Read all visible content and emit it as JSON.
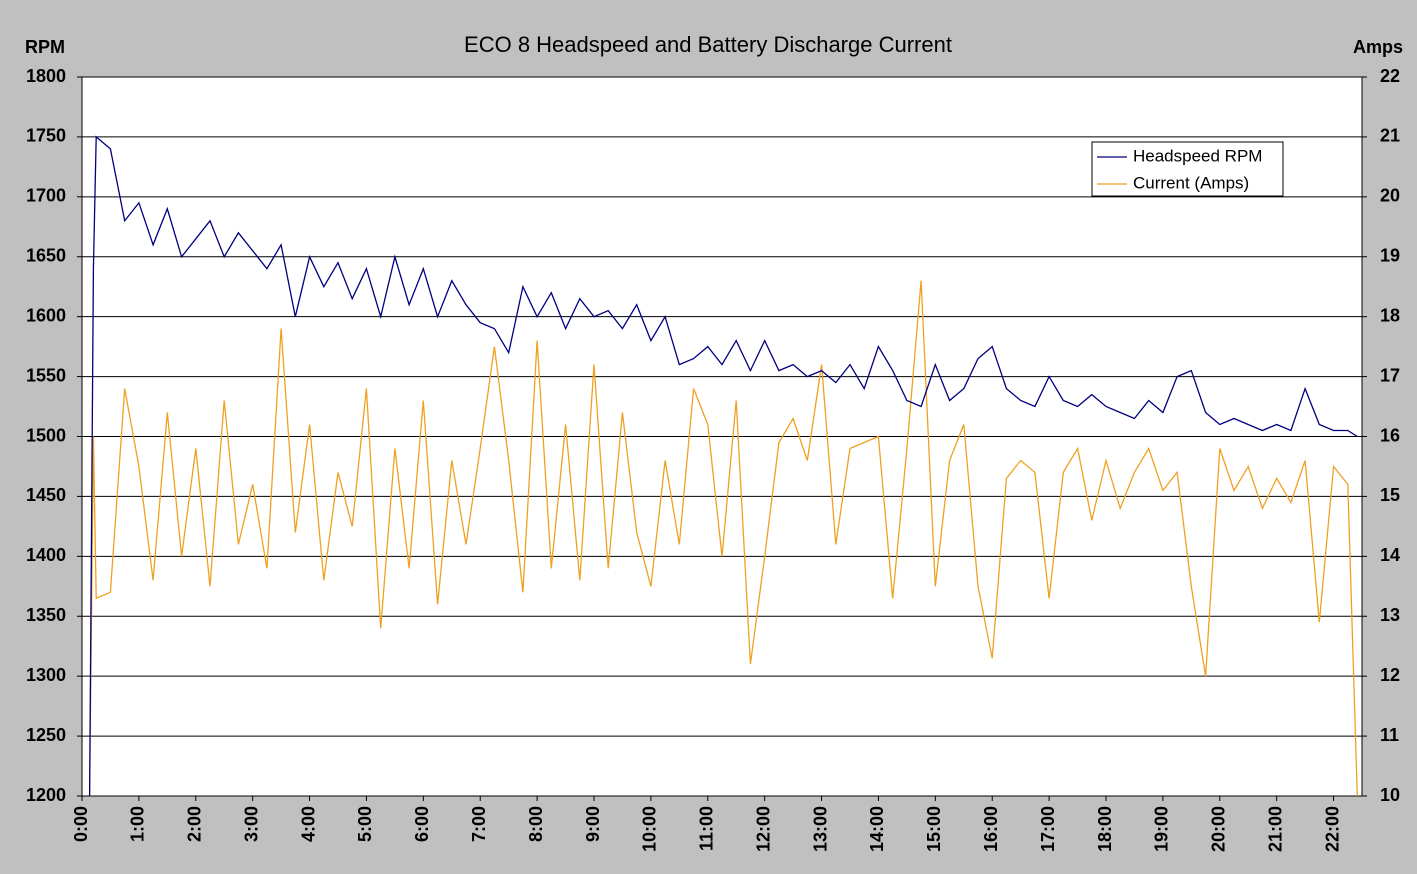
{
  "chart_data": {
    "type": "line",
    "title": "ECO 8 Headspeed and Battery Discharge Current",
    "ylabel": "RPM",
    "y2label": "Amps",
    "x": [
      8,
      12,
      15,
      30,
      45,
      60,
      75,
      90,
      105,
      120,
      135,
      150,
      165,
      180,
      195,
      210,
      225,
      240,
      255,
      270,
      285,
      300,
      315,
      330,
      345,
      360,
      375,
      390,
      405,
      420,
      435,
      450,
      465,
      480,
      495,
      510,
      525,
      540,
      555,
      570,
      585,
      600,
      615,
      630,
      645,
      660,
      675,
      690,
      705,
      720,
      735,
      750,
      765,
      780,
      795,
      810,
      825,
      840,
      855,
      870,
      885,
      900,
      915,
      930,
      945,
      960,
      975,
      990,
      1005,
      1020,
      1035,
      1050,
      1065,
      1080,
      1095,
      1110,
      1125,
      1140,
      1155,
      1170,
      1185,
      1200,
      1215,
      1230,
      1245,
      1260,
      1275,
      1290,
      1305,
      1320,
      1335,
      1345
    ],
    "series": [
      {
        "name": "Headspeed RPM",
        "color": "#000080",
        "axis": "y",
        "values": [
          1200,
          1640,
          1750,
          1740,
          1680,
          1695,
          1660,
          1690,
          1650,
          1665,
          1680,
          1650,
          1670,
          1655,
          1640,
          1660,
          1600,
          1650,
          1625,
          1645,
          1615,
          1640,
          1600,
          1650,
          1610,
          1640,
          1600,
          1630,
          1610,
          1595,
          1590,
          1570,
          1625,
          1600,
          1620,
          1590,
          1615,
          1600,
          1605,
          1590,
          1610,
          1580,
          1600,
          1560,
          1565,
          1575,
          1560,
          1580,
          1555,
          1580,
          1555,
          1560,
          1550,
          1555,
          1545,
          1560,
          1540,
          1575,
          1555,
          1530,
          1525,
          1560,
          1530,
          1540,
          1565,
          1575,
          1540,
          1530,
          1525,
          1550,
          1530,
          1525,
          1535,
          1525,
          1520,
          1515,
          1530,
          1520,
          1550,
          1555,
          1520,
          1510,
          1515,
          1510,
          1505,
          1510,
          1505,
          1540,
          1510,
          1505,
          1505,
          1500
        ]
      },
      {
        "name": "Current (Amps)",
        "color": "#f0a020",
        "axis": "y2",
        "values": [
          10,
          16,
          13.3,
          13.4,
          16.8,
          15.5,
          13.6,
          16.4,
          14,
          15.8,
          13.5,
          16.6,
          14.2,
          15.2,
          13.8,
          17.8,
          14.4,
          16.2,
          13.6,
          15.4,
          14.5,
          16.8,
          12.8,
          15.8,
          13.8,
          16.6,
          13.2,
          15.6,
          14.2,
          15.8,
          17.5,
          15.6,
          13.4,
          17.6,
          13.8,
          16.2,
          13.6,
          17.2,
          13.8,
          16.4,
          14.4,
          13.5,
          15.6,
          14.2,
          16.8,
          16.2,
          14,
          16.6,
          12.2,
          14,
          15.9,
          16.3,
          15.6,
          17.2,
          14.2,
          15.8,
          15.9,
          16,
          13.3,
          15.8,
          18.6,
          13.5,
          15.6,
          16.2,
          13.5,
          12.3,
          15.3,
          15.6,
          15.4,
          13.3,
          15.4,
          15.8,
          14.6,
          15.6,
          14.8,
          15.4,
          15.8,
          15.1,
          15.4,
          13.5,
          12,
          15.8,
          15.1,
          15.5,
          14.8,
          15.3,
          14.9,
          15.6,
          12.9,
          15.5,
          15.2,
          10
        ]
      }
    ],
    "xlim": [
      0,
      1350
    ],
    "xticks": [
      {
        "value": 0,
        "label": "0:00"
      },
      {
        "value": 60,
        "label": "1:00"
      },
      {
        "value": 120,
        "label": "2:00"
      },
      {
        "value": 180,
        "label": "3:00"
      },
      {
        "value": 240,
        "label": "4:00"
      },
      {
        "value": 300,
        "label": "5:00"
      },
      {
        "value": 360,
        "label": "6:00"
      },
      {
        "value": 420,
        "label": "7:00"
      },
      {
        "value": 480,
        "label": "8:00"
      },
      {
        "value": 540,
        "label": "9:00"
      },
      {
        "value": 600,
        "label": "10:00"
      },
      {
        "value": 660,
        "label": "11:00"
      },
      {
        "value": 720,
        "label": "12:00"
      },
      {
        "value": 780,
        "label": "13:00"
      },
      {
        "value": 840,
        "label": "14:00"
      },
      {
        "value": 900,
        "label": "15:00"
      },
      {
        "value": 960,
        "label": "16:00"
      },
      {
        "value": 1020,
        "label": "17:00"
      },
      {
        "value": 1080,
        "label": "18:00"
      },
      {
        "value": 1140,
        "label": "19:00"
      },
      {
        "value": 1200,
        "label": "20:00"
      },
      {
        "value": 1260,
        "label": "21:00"
      },
      {
        "value": 1320,
        "label": "22:00"
      }
    ],
    "ylim": [
      1200,
      1800
    ],
    "yticks": [
      1200,
      1250,
      1300,
      1350,
      1400,
      1450,
      1500,
      1550,
      1600,
      1650,
      1700,
      1750,
      1800
    ],
    "y2lim": [
      10,
      22
    ],
    "y2ticks": [
      10,
      11,
      12,
      13,
      14,
      15,
      16,
      17,
      18,
      19,
      20,
      21,
      22
    ],
    "grid": true,
    "legend": "upper right"
  }
}
